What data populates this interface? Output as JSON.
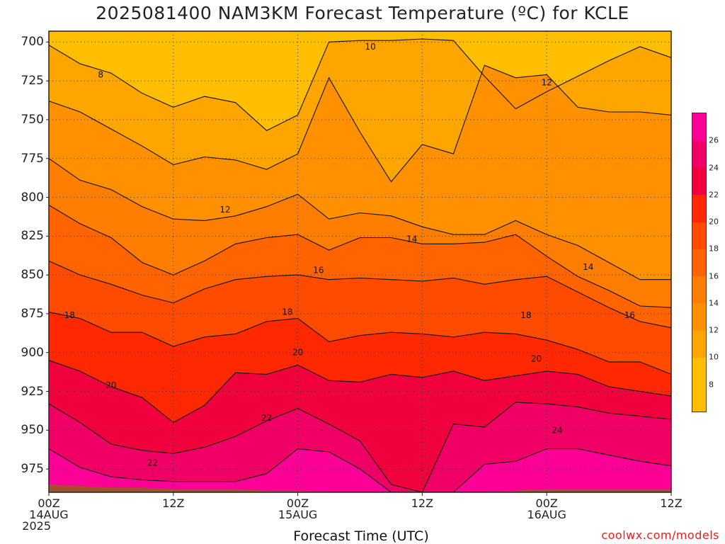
{
  "title": "2025081400 NAM3KM Forecast Temperature (ºC) for KCLE",
  "credit": "coolwx.com/models",
  "chart_data": {
    "type": "contour",
    "title": "2025081400 NAM3KM Forecast Temperature (ºC) for KCLE",
    "xlabel": "Forecast Time (UTC)",
    "ylabel": "",
    "y_axis": {
      "ticks": [
        700,
        725,
        750,
        775,
        800,
        825,
        850,
        875,
        900,
        925,
        950,
        975
      ],
      "ylim": [
        693,
        990
      ],
      "reversed": true,
      "units": "mb"
    },
    "x_axis": {
      "ticks": [
        {
          "hour": 0,
          "label": "00Z",
          "sub1": "14AUG",
          "sub2": "2025"
        },
        {
          "hour": 12,
          "label": "12Z",
          "sub1": "",
          "sub2": ""
        },
        {
          "hour": 24,
          "label": "00Z",
          "sub1": "15AUG",
          "sub2": ""
        },
        {
          "hour": 36,
          "label": "12Z",
          "sub1": "",
          "sub2": ""
        },
        {
          "hour": 48,
          "label": "00Z",
          "sub1": "16AUG",
          "sub2": ""
        },
        {
          "hour": 60,
          "label": "12Z",
          "sub1": "",
          "sub2": ""
        }
      ],
      "xlim": [
        0,
        60
      ]
    },
    "grid": true,
    "colorbar": {
      "ticks": [
        8,
        10,
        12,
        14,
        16,
        18,
        20,
        22,
        24,
        26
      ],
      "colors": [
        "#ffbe00",
        "#ffa500",
        "#ff9100",
        "#ff7d00",
        "#ff6400",
        "#ff4b00",
        "#ff2800",
        "#f0003c",
        "#f00064",
        "#ff0096",
        "#ff009c"
      ],
      "range": [
        6,
        28
      ]
    },
    "x_hours": [
      0,
      3,
      6,
      9,
      12,
      15,
      18,
      21,
      24,
      27,
      30,
      33,
      36,
      39,
      42,
      45,
      48,
      51,
      54,
      57,
      60
    ],
    "contours": [
      {
        "level": 10,
        "p": [
          702,
          714,
          720,
          733,
          742,
          735,
          739,
          757,
          747,
          700,
          699,
          699,
          698,
          699,
          722,
          743,
          732,
          722,
          712,
          703,
          710
        ]
      },
      {
        "level": 12,
        "p": [
          738,
          745,
          756,
          767,
          779,
          774,
          776,
          782,
          772,
          723,
          758,
          790,
          766,
          772,
          715,
          723,
          721,
          742,
          745,
          745,
          747
        ]
      },
      {
        "level": 14,
        "p": [
          775,
          789,
          795,
          806,
          814,
          815,
          812,
          806,
          798,
          814,
          810,
          812,
          819,
          824,
          824,
          815,
          824,
          831,
          842,
          853,
          853
        ]
      },
      {
        "level": 16,
        "p": [
          805,
          817,
          826,
          842,
          850,
          841,
          830,
          826,
          824,
          834,
          826,
          826,
          830,
          830,
          829,
          824,
          838,
          851,
          860,
          870,
          871
        ]
      },
      {
        "level": 18,
        "p": [
          841,
          850,
          856,
          863,
          868,
          859,
          853,
          851,
          850,
          853,
          852,
          853,
          854,
          852,
          856,
          853,
          851,
          861,
          871,
          880,
          884
        ]
      },
      {
        "level": 20,
        "p": [
          874,
          878,
          887,
          887,
          896,
          890,
          888,
          880,
          878,
          893,
          889,
          887,
          888,
          890,
          887,
          888,
          892,
          898,
          906,
          906,
          914
        ]
      },
      {
        "level": 22,
        "p": [
          905,
          912,
          922,
          929,
          945,
          934,
          913,
          914,
          908,
          918,
          919,
          914,
          916,
          912,
          918,
          915,
          912,
          914,
          922,
          925,
          928
        ]
      },
      {
        "level": 24,
        "p": [
          933,
          945,
          959,
          963,
          965,
          961,
          954,
          944,
          936,
          946,
          957,
          985,
          990,
          946,
          948,
          932,
          933,
          935,
          939,
          941,
          943
        ]
      },
      {
        "level": 26,
        "p": [
          962,
          974,
          980,
          982,
          983,
          983,
          983,
          978,
          962,
          964,
          975,
          990,
          990,
          990,
          972,
          970,
          962,
          962,
          966,
          970,
          973
        ]
      }
    ],
    "contour_labels": [
      {
        "text": "8",
        "hour": 5,
        "p": 721
      },
      {
        "text": "10",
        "hour": 31,
        "p": 703
      },
      {
        "text": "12",
        "hour": 17,
        "p": 808
      },
      {
        "text": "12",
        "hour": 48,
        "p": 726
      },
      {
        "text": "14",
        "hour": 35,
        "p": 827
      },
      {
        "text": "14",
        "hour": 52,
        "p": 845
      },
      {
        "text": "16",
        "hour": 26,
        "p": 847
      },
      {
        "text": "16",
        "hour": 56,
        "p": 876
      },
      {
        "text": "18",
        "hour": 2,
        "p": 876
      },
      {
        "text": "18",
        "hour": 23,
        "p": 874
      },
      {
        "text": "18",
        "hour": 46,
        "p": 876
      },
      {
        "text": "20",
        "hour": 6,
        "p": 921
      },
      {
        "text": "20",
        "hour": 24,
        "p": 900
      },
      {
        "text": "20",
        "hour": 47,
        "p": 904
      },
      {
        "text": "22",
        "hour": 10,
        "p": 971
      },
      {
        "text": "22",
        "hour": 21,
        "p": 942
      },
      {
        "text": "24",
        "hour": 49,
        "p": 950
      }
    ],
    "surface_p": [
      985,
      986,
      987,
      987,
      988,
      988,
      988,
      989,
      989,
      990,
      990,
      990,
      990,
      990,
      990,
      989,
      988,
      988,
      988,
      988,
      988
    ]
  }
}
